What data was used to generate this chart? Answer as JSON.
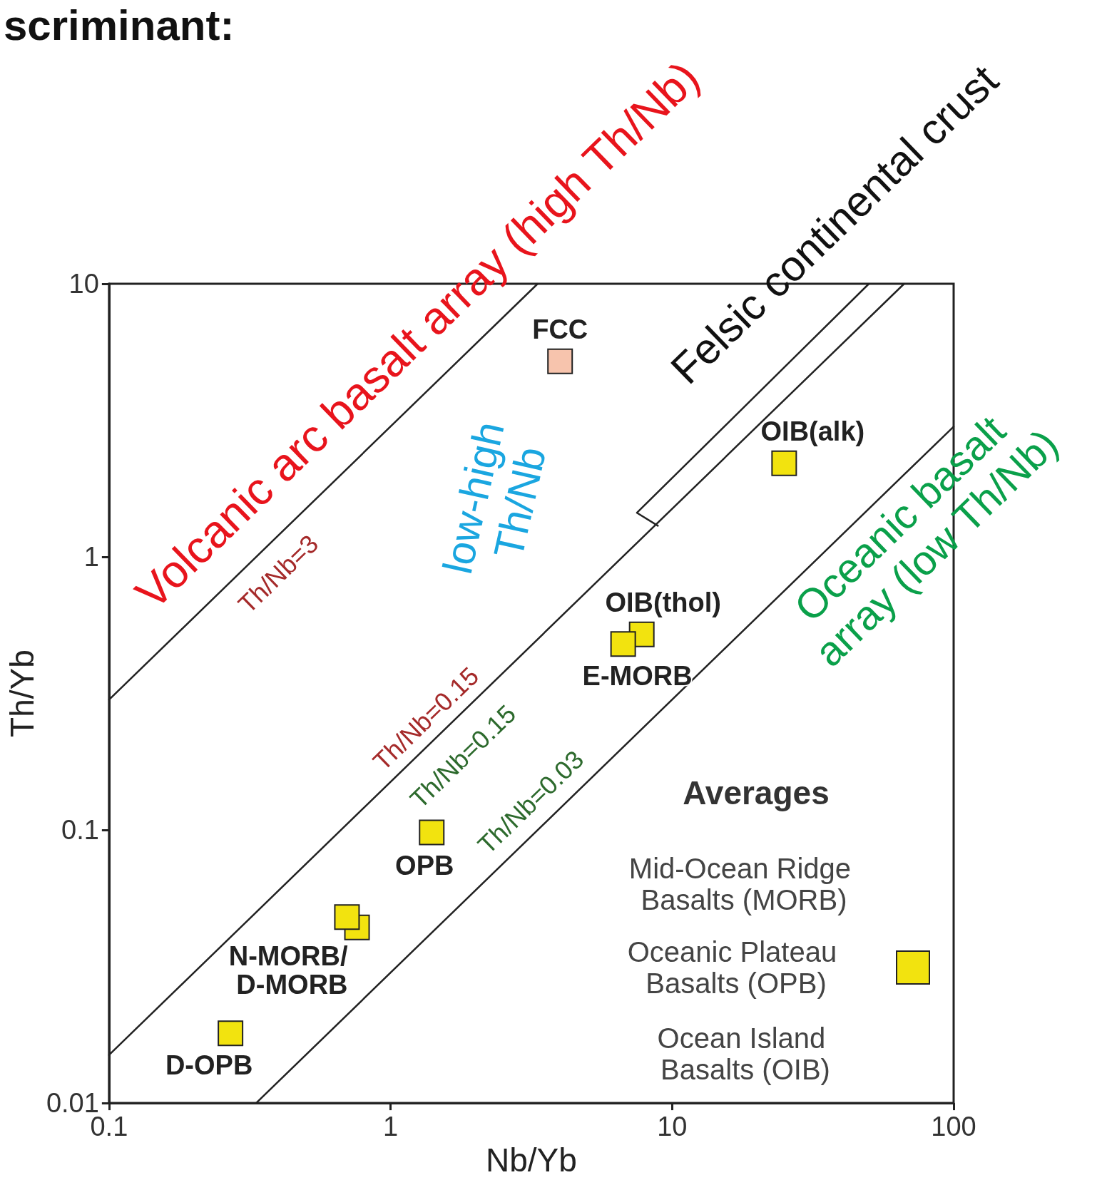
{
  "chart_data": {
    "type": "scatter",
    "title": "scriminant:",
    "xlabel": "Nb/Yb",
    "ylabel": "Th/Yb",
    "log": "xy",
    "grid": false,
    "legend": false,
    "marker": "square",
    "xlim": [
      0.1,
      100
    ],
    "xticks": [
      0.1,
      1,
      10,
      100
    ],
    "ylim": [
      0.01,
      10
    ],
    "yticks": [
      0.01,
      0.1,
      1,
      10
    ],
    "series": [
      {
        "name": "FCC",
        "color": "#f7c4ad",
        "x": [
          4.0
        ],
        "values": [
          5.2
        ]
      },
      {
        "name": "OIB(alk)",
        "color": "#f2e30f",
        "x": [
          25
        ],
        "values": [
          2.2
        ]
      },
      {
        "name": "OIB(thol)",
        "color": "#f2e30f",
        "x": [
          7.8
        ],
        "values": [
          0.52
        ]
      },
      {
        "name": "E-MORB",
        "color": "#f2e30f",
        "x": [
          6.7
        ],
        "values": [
          0.48
        ]
      },
      {
        "name": "OPB",
        "color": "#f2e30f",
        "x": [
          1.4
        ],
        "values": [
          0.098
        ]
      },
      {
        "name": "N-MORB/D-MORB",
        "color": "#f2e30f",
        "x": [
          0.76,
          0.7
        ],
        "values": [
          0.044,
          0.048
        ]
      },
      {
        "name": "D-OPB",
        "color": "#f2e30f",
        "x": [
          0.27
        ],
        "values": [
          0.018
        ]
      },
      {
        "type": "line",
        "color": "#222222",
        "marker": "none",
        "line_style": "solid",
        "x": [
          0.1,
          3.33
        ],
        "values": [
          0.3,
          10
        ]
      },
      {
        "type": "line",
        "color": "#222222",
        "marker": "none",
        "line_style": "solid",
        "x": [
          0.1,
          66.7
        ],
        "values": [
          0.015,
          10
        ]
      },
      {
        "type": "line",
        "color": "#222222",
        "marker": "none",
        "line_style": "solid",
        "x": [
          0.333,
          100
        ],
        "values": [
          0.01,
          3
        ]
      },
      {
        "type": "line",
        "color": "#222222",
        "marker": "none",
        "line_style": "solid",
        "x": [
          8.9,
          7.5,
          50
        ],
        "values": [
          1.3,
          1.45,
          10
        ]
      }
    ],
    "annotations": [
      "Volcanic arc basalt array (high Th/Nb)",
      "Felsic continental crust",
      "low-high Th/Nb",
      "Oceanic basalt array (low Th/Nb)",
      "Th/Nb=3",
      "Th/Nb=0.15",
      "Th/Nb=0.15",
      "Th/Nb=0.03",
      "Averages",
      "Mid-Ocean Ridge Basalts (MORB)",
      "Oceanic Plateau Basalts (OPB)",
      "Ocean Island Basalts (OIB)"
    ]
  }
}
